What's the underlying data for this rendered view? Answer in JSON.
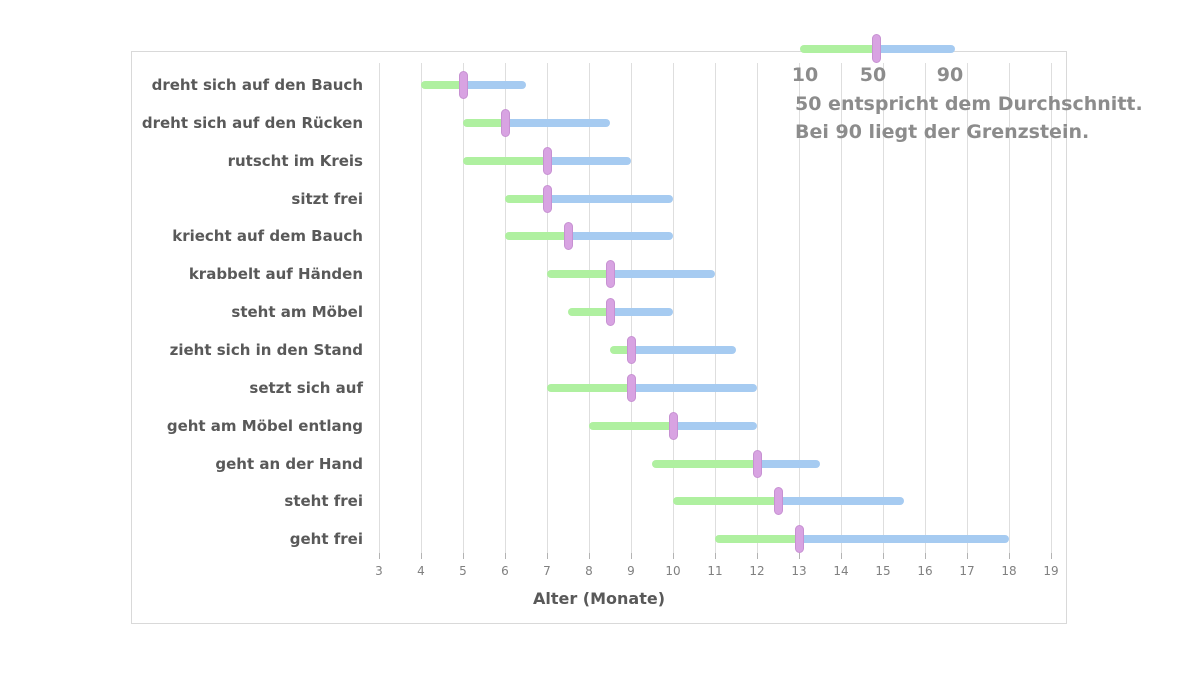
{
  "chart_data": {
    "type": "bar",
    "variant": "horizontal-range-bars",
    "title": "",
    "xlabel": "Alter (Monate)",
    "xlim": [
      3,
      19
    ],
    "xticks": [
      3,
      4,
      5,
      6,
      7,
      8,
      9,
      10,
      11,
      12,
      13,
      14,
      15,
      16,
      17,
      18,
      19
    ],
    "grid": "vertical-on",
    "legend_position": "top-right",
    "categories": [
      "dreht sich auf den Bauch",
      "dreht sich auf den Rücken",
      "rutscht im Kreis",
      "sitzt frei",
      "kriecht auf dem Bauch",
      "krabbelt auf Händen",
      "steht am Möbel",
      "zieht sich in den Stand",
      "setzt sich auf",
      "geht am Möbel entlang",
      "geht an der Hand",
      "steht frei",
      "geht frei"
    ],
    "series": [
      {
        "name": "10",
        "values": [
          4,
          5,
          5,
          6,
          6,
          7,
          7.5,
          8.5,
          7,
          8,
          9.5,
          10,
          11
        ]
      },
      {
        "name": "50",
        "values": [
          5,
          6,
          7,
          7,
          7.5,
          8.5,
          8.5,
          9,
          9,
          10,
          12,
          12.5,
          13
        ]
      },
      {
        "name": "90",
        "values": [
          6.5,
          8.5,
          9,
          10,
          10,
          11,
          10,
          11.5,
          12,
          12,
          13.5,
          15.5,
          18
        ]
      }
    ]
  },
  "legend": {
    "tick_10": "10",
    "tick_50": "50",
    "tick_90": "90",
    "line1": "50 entspricht dem Durchschnitt.",
    "line2": "Bei 90 liegt der Grenzstein."
  },
  "colors": {
    "bar_low": "#aff0a0",
    "bar_high": "#a6cbf1",
    "marker_fill": "#d8a3e2",
    "marker_border": "#c791d2",
    "grid": "#dedede",
    "tick": "#b3b3b3",
    "category_text": "#595959",
    "tick_text": "#808080",
    "legend_text": "#8c8c8c",
    "card_border": "#d9d9d9"
  }
}
